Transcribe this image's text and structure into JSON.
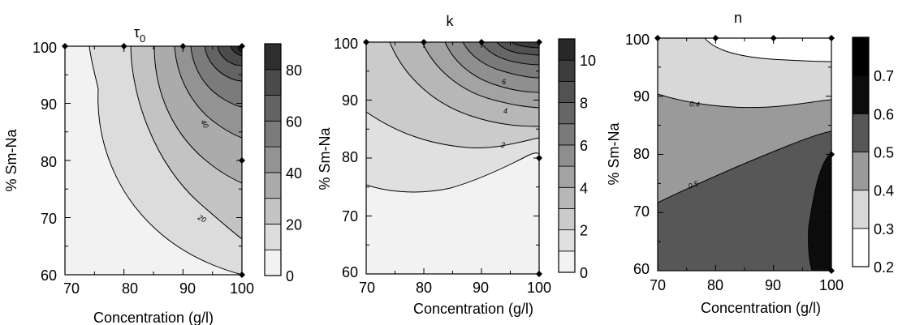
{
  "chart_data": [
    {
      "type": "contour",
      "title": "τ0",
      "xlabel": "Concentration (g/l)",
      "ylabel": "% Sm-Na",
      "xlim": [
        70,
        100
      ],
      "ylim": [
        60,
        100
      ],
      "x_ticks": [
        "70",
        "80",
        "90",
        "100"
      ],
      "y_ticks": [
        "100",
        "90",
        "80",
        "70",
        "60"
      ],
      "colorbar": {
        "ticks": [
          "80",
          "60",
          "40",
          "20",
          "0"
        ],
        "levels": [
          0,
          10,
          20,
          30,
          40,
          50,
          60,
          70,
          80,
          90
        ],
        "range": [
          0,
          90
        ]
      },
      "contour_labels": [
        "40",
        "20"
      ],
      "data_points": [
        {
          "x": 70,
          "y": 100
        },
        {
          "x": 80,
          "y": 100
        },
        {
          "x": 90,
          "y": 100
        },
        {
          "x": 100,
          "y": 100
        },
        {
          "x": 100,
          "y": 80
        },
        {
          "x": 100,
          "y": 60
        }
      ],
      "colors": [
        "#f2f2f2",
        "#dcdcdc",
        "#c3c3c3",
        "#ababab",
        "#939393",
        "#7b7b7b",
        "#636363",
        "#4b4b4b",
        "#2e2e2e",
        "#111111"
      ]
    },
    {
      "type": "contour",
      "title": "k",
      "xlabel": "Concentration (g/l)",
      "ylabel": "% Sm-Na",
      "xlim": [
        70,
        100
      ],
      "ylim": [
        60,
        100
      ],
      "x_ticks": [
        "70",
        "80",
        "90",
        "100"
      ],
      "y_ticks": [
        "100",
        "90",
        "80",
        "70",
        "60"
      ],
      "colorbar": {
        "ticks": [
          "10",
          "8",
          "6",
          "4",
          "2",
          "0"
        ],
        "levels": [
          0,
          1,
          2,
          3,
          4,
          5,
          6,
          7,
          8,
          9,
          10,
          11
        ],
        "range": [
          0,
          11
        ]
      },
      "contour_labels": [
        "6",
        "4",
        "2"
      ],
      "data_points": [
        {
          "x": 70,
          "y": 100
        },
        {
          "x": 80,
          "y": 100
        },
        {
          "x": 90,
          "y": 100
        },
        {
          "x": 100,
          "y": 100
        },
        {
          "x": 100,
          "y": 80
        },
        {
          "x": 100,
          "y": 60
        }
      ],
      "colors": [
        "#f2f2f2",
        "#e0e0e0",
        "#cbcbcb",
        "#b7b7b7",
        "#a3a3a3",
        "#8f8f8f",
        "#7a7a7a",
        "#666666",
        "#525252",
        "#3d3d3d",
        "#282828",
        "#0f0f0f"
      ]
    },
    {
      "type": "contour",
      "title": "n",
      "xlabel": "Concentration (g/l)",
      "ylabel": "% Sm-Na",
      "xlim": [
        70,
        100
      ],
      "ylim": [
        60,
        100
      ],
      "x_ticks": [
        "70",
        "80",
        "90",
        "100"
      ],
      "y_ticks": [
        "100",
        "90",
        "80",
        "70",
        "60"
      ],
      "colorbar": {
        "ticks": [
          "0.7",
          "0.6",
          "0.5",
          "0.4",
          "0.3",
          "0.2"
        ],
        "levels": [
          0.2,
          0.3,
          0.4,
          0.5,
          0.6,
          0.7,
          0.8
        ],
        "range": [
          0.2,
          0.8
        ]
      },
      "contour_labels": [
        "0.4",
        "0.5"
      ],
      "data_points": [
        {
          "x": 70,
          "y": 100
        },
        {
          "x": 80,
          "y": 100
        },
        {
          "x": 90,
          "y": 100
        },
        {
          "x": 100,
          "y": 100
        },
        {
          "x": 100,
          "y": 80
        },
        {
          "x": 100,
          "y": 60
        }
      ],
      "colors": [
        "#ffffff",
        "#d8d8d8",
        "#9a9a9a",
        "#575757",
        "#0c0c0c",
        "#000000"
      ]
    }
  ]
}
